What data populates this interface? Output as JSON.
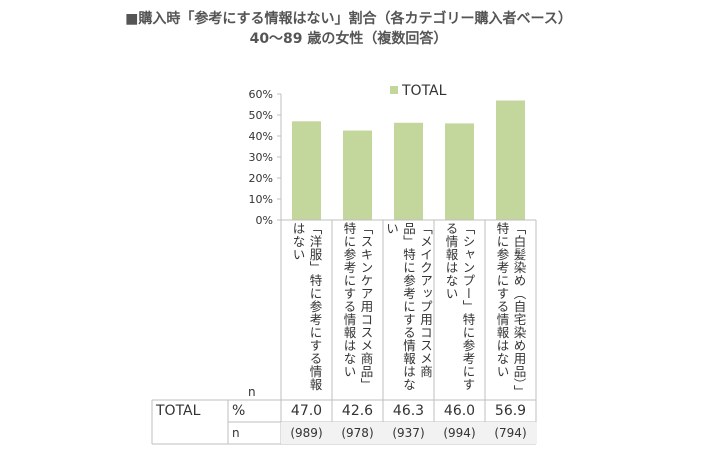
{
  "title": {
    "line1": "■購入時「参考にする情報はない」割合（各カテゴリー購入者ベース）",
    "line2": "40〜89 歳の女性（複数回答）"
  },
  "colors": {
    "bar": "#c3d69b",
    "grid": "#d9d9d9",
    "axis": "#bfbfbf",
    "text": "#333333"
  },
  "chart_data": {
    "type": "bar",
    "categories": [
      "「洋服」特に参考にする情報はない",
      "「スキンケア用コスメ商品」特に参考にする情報はない",
      "「メイクアップ用コスメ商品」特に参考にする情報はない",
      "「シャンプー」特に参考にする情報はない",
      "「白髪染め（自宅染め用品）」特に参考にする情報はない"
    ],
    "series": [
      {
        "name": "TOTAL",
        "values": [
          47.0,
          42.6,
          46.3,
          46.0,
          56.9
        ]
      }
    ],
    "ylim": [
      0,
      60
    ],
    "yticks": [
      "0%",
      "10%",
      "20%",
      "30%",
      "40%",
      "50%",
      "60%"
    ],
    "legend_position": "top",
    "grid": false
  },
  "table": {
    "n_header": "n",
    "row_label": "TOTAL",
    "pct_label": "%",
    "n_label": "n",
    "pct_values": [
      "47.0",
      "42.6",
      "46.3",
      "46.0",
      "56.9"
    ],
    "n_values": [
      "(989)",
      "(978)",
      "(937)",
      "(994)",
      "(794)"
    ]
  }
}
